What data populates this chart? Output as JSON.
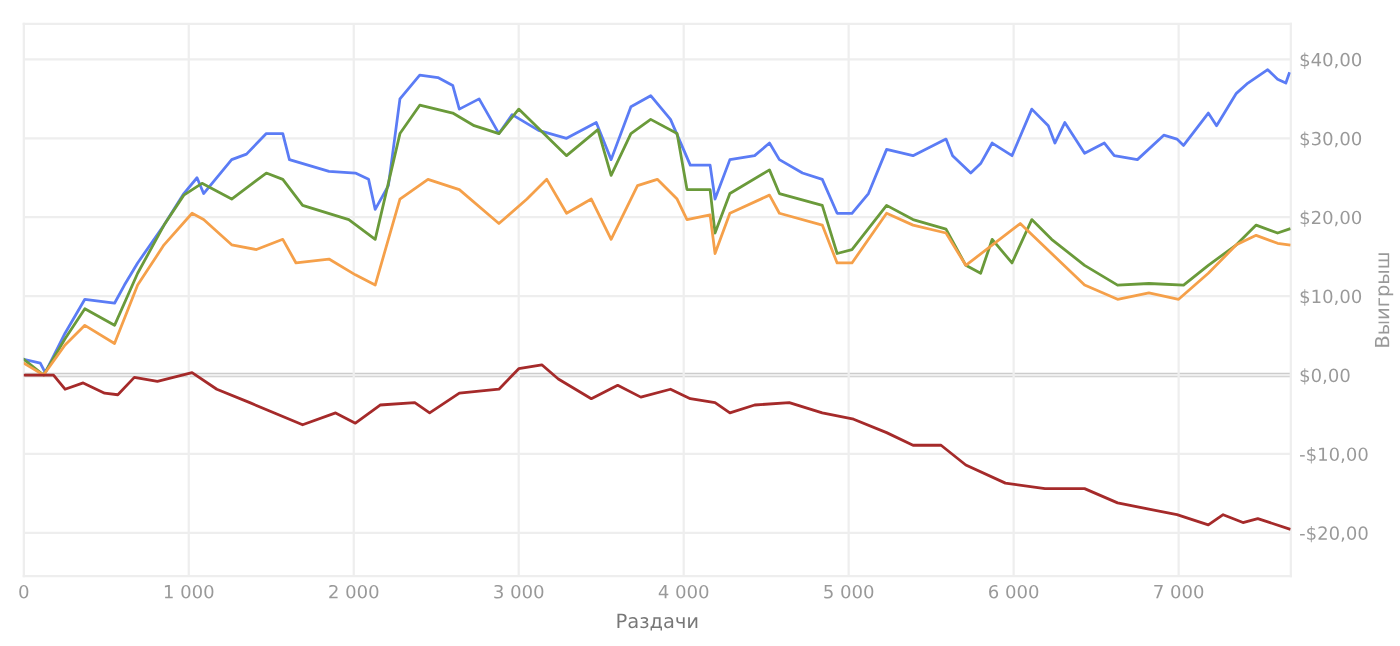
{
  "chart_data": {
    "type": "line",
    "xlabel": "Раздачи",
    "ylabel": "Выигрыш",
    "xlim": [
      0,
      7680
    ],
    "ylim": [
      -25.5,
      44.5
    ],
    "xticks": [
      0,
      {
        "value": 1000,
        "label": "1 000"
      },
      {
        "value": 2000,
        "label": "2 000"
      },
      {
        "value": 3000,
        "label": "3 000"
      },
      {
        "value": 4000,
        "label": "4 000"
      },
      {
        "value": 5000,
        "label": "5 000"
      },
      {
        "value": 6000,
        "label": "6 000"
      },
      {
        "value": 7000,
        "label": "7 000"
      }
    ],
    "yticks": [
      {
        "value": -20,
        "label": "-$20,00"
      },
      {
        "value": -10,
        "label": "-$10,00"
      },
      {
        "value": 0,
        "label": "$0,00"
      },
      {
        "value": 10,
        "label": "$10,00"
      },
      {
        "value": 20,
        "label": "$20,00"
      },
      {
        "value": 30,
        "label": "$30,00"
      },
      {
        "value": 40,
        "label": "$40,00"
      }
    ],
    "grid": true,
    "legend": false,
    "marker": "none",
    "line_style": "solid",
    "ref_lines": [
      {
        "axis": "y",
        "value": 0,
        "color": "#cccccc"
      }
    ],
    "series": [
      {
        "color": "#5b7cf5",
        "x": [
          0,
          100,
          130,
          250,
          370,
          550,
          610,
          690,
          850,
          970,
          1050,
          1090,
          1260,
          1350,
          1470,
          1570,
          1610,
          1850,
          2010,
          2090,
          2130,
          2210,
          2280,
          2400,
          2510,
          2600,
          2640,
          2760,
          2880,
          2960,
          3120,
          3290,
          3470,
          3560,
          3680,
          3800,
          3920,
          4040,
          4160,
          4190,
          4280,
          4430,
          4520,
          4580,
          4720,
          4840,
          4930,
          5020,
          5120,
          5230,
          5390,
          5590,
          5630,
          5740,
          5800,
          5870,
          5990,
          6110,
          6210,
          6250,
          6310,
          6430,
          6550,
          6610,
          6750,
          6910,
          6990,
          7030,
          7180,
          7230,
          7350,
          7420,
          7540,
          7600,
          7650,
          7670
        ],
        "values": [
          2,
          1.5,
          0.3,
          5.3,
          9.6,
          9.1,
          11.4,
          14.2,
          19,
          23,
          25,
          23,
          27.3,
          28,
          30.6,
          30.6,
          27.3,
          25.8,
          25.6,
          24.8,
          21,
          24,
          35,
          38,
          37.7,
          36.7,
          33.7,
          35,
          30.6,
          33,
          31,
          30,
          32,
          27.3,
          34,
          35.4,
          32.4,
          26.6,
          26.6,
          22.3,
          27.3,
          27.8,
          29.4,
          27.3,
          25.6,
          24.8,
          20.5,
          20.5,
          23,
          28.6,
          27.8,
          29.9,
          27.8,
          25.6,
          26.8,
          29.4,
          27.8,
          33.7,
          31.6,
          29.4,
          32,
          28.1,
          29.4,
          27.8,
          27.3,
          30.4,
          29.9,
          29.1,
          33.2,
          31.6,
          35.7,
          37,
          38.7,
          37.5,
          37,
          38.2
        ]
      },
      {
        "color": "#6a9a3a",
        "x": [
          0,
          120,
          250,
          370,
          550,
          690,
          850,
          970,
          1080,
          1260,
          1470,
          1570,
          1690,
          1970,
          2130,
          2280,
          2400,
          2600,
          2730,
          2880,
          3000,
          3290,
          3480,
          3560,
          3680,
          3800,
          3960,
          4020,
          4160,
          4190,
          4280,
          4520,
          4580,
          4840,
          4930,
          5020,
          5230,
          5390,
          5590,
          5710,
          5800,
          5870,
          5990,
          6110,
          6230,
          6430,
          6630,
          6820,
          7030,
          7180,
          7350,
          7470,
          7600,
          7670
        ],
        "values": [
          2,
          0,
          4.6,
          8.4,
          6.3,
          12.9,
          19,
          22.8,
          24.3,
          22.3,
          25.6,
          24.8,
          21.5,
          19.7,
          17.2,
          30.6,
          34.2,
          33.2,
          31.6,
          30.6,
          33.7,
          27.8,
          31.1,
          25.3,
          30.6,
          32.4,
          30.6,
          23.5,
          23.5,
          18,
          23,
          26,
          23,
          21.5,
          15.4,
          15.9,
          21.5,
          19.7,
          18.5,
          13.9,
          12.9,
          17.2,
          14.2,
          19.7,
          17.2,
          13.9,
          11.4,
          11.6,
          11.4,
          13.9,
          16.5,
          19,
          18,
          18.5
        ]
      },
      {
        "color": "#f5a04a",
        "x": [
          0,
          120,
          250,
          370,
          550,
          690,
          850,
          1020,
          1090,
          1260,
          1410,
          1570,
          1650,
          1850,
          2010,
          2130,
          2280,
          2450,
          2640,
          2880,
          3050,
          3170,
          3290,
          3440,
          3560,
          3720,
          3840,
          3960,
          4020,
          4160,
          4190,
          4280,
          4520,
          4580,
          4840,
          4930,
          5020,
          5230,
          5390,
          5590,
          5710,
          6040,
          6230,
          6430,
          6630,
          6820,
          7000,
          7180,
          7350,
          7470,
          7600,
          7670
        ],
        "values": [
          1.5,
          0,
          3.8,
          6.3,
          4,
          11.4,
          16.5,
          20.5,
          19.7,
          16.5,
          15.9,
          17.2,
          14.2,
          14.7,
          12.7,
          11.4,
          22.3,
          24.8,
          23.5,
          19.2,
          22.3,
          24.8,
          20.5,
          22.3,
          17.2,
          24,
          24.8,
          22.3,
          19.7,
          20.3,
          15.4,
          20.5,
          22.8,
          20.5,
          19,
          14.2,
          14.2,
          20.5,
          19,
          18,
          13.9,
          19.2,
          15.4,
          11.4,
          9.6,
          10.4,
          9.6,
          12.9,
          16.5,
          17.7,
          16.7,
          16.5
        ]
      },
      {
        "color": "#a52a2a",
        "x": [
          0,
          180,
          250,
          360,
          490,
          570,
          670,
          810,
          1020,
          1170,
          1370,
          1690,
          1890,
          2010,
          2160,
          2370,
          2460,
          2640,
          2880,
          3000,
          3140,
          3240,
          3440,
          3600,
          3740,
          3920,
          4040,
          4190,
          4280,
          4430,
          4640,
          4840,
          5030,
          5230,
          5390,
          5560,
          5710,
          5950,
          6190,
          6430,
          6630,
          6820,
          6990,
          7180,
          7270,
          7390,
          7480,
          7670
        ],
        "values": [
          0,
          0,
          -1.8,
          -1,
          -2.3,
          -2.5,
          -0.3,
          -0.8,
          0.3,
          -1.8,
          -3.5,
          -6.3,
          -4.8,
          -6.1,
          -3.8,
          -3.5,
          -4.8,
          -2.3,
          -1.8,
          0.8,
          1.3,
          -0.5,
          -3,
          -1.3,
          -2.8,
          -1.8,
          -3,
          -3.5,
          -4.8,
          -3.8,
          -3.5,
          -4.8,
          -5.6,
          -7.3,
          -8.9,
          -8.9,
          -11.4,
          -13.7,
          -14.4,
          -14.4,
          -16.2,
          -17,
          -17.7,
          -19,
          -17.7,
          -18.7,
          -18.2,
          -19.5
        ]
      }
    ]
  }
}
